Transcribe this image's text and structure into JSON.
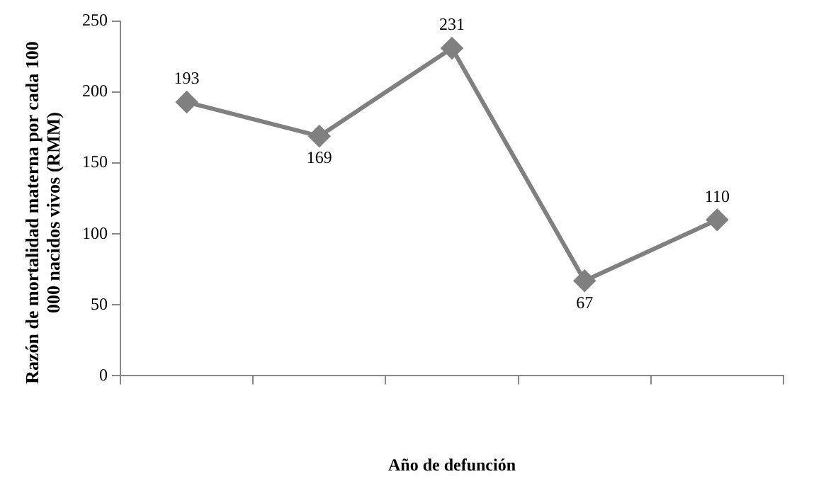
{
  "chart_data": {
    "type": "line",
    "xlabel": "Año de defunción",
    "ylabel": "Razón de mortalidad materna por cada 100 000 nacidos vivos (RMM)",
    "categories": [
      null,
      null,
      null,
      null,
      null
    ],
    "series": [
      {
        "color": "#808080",
        "values": [
          193,
          169,
          231,
          67,
          110
        ]
      }
    ],
    "ylim": [
      0,
      250
    ],
    "yticks": [
      0,
      50,
      100,
      150,
      200,
      250
    ],
    "grid": false,
    "legend": false,
    "marker": "diamond",
    "line_style": "solid",
    "data_labels": true
  }
}
